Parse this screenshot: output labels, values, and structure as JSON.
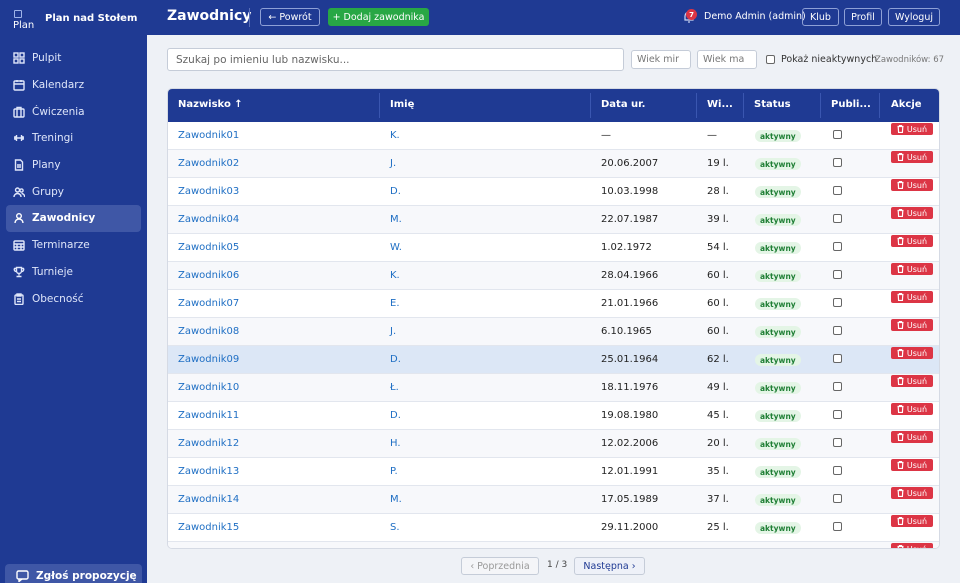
{
  "brand": {
    "logo_text": "Plan",
    "name": "Plan nad Stołem"
  },
  "sidebar": {
    "items": [
      {
        "label": "Pulpit",
        "icon": "grid-icon"
      },
      {
        "label": "Kalendarz",
        "icon": "calendar-icon"
      },
      {
        "label": "Ćwiczenia",
        "icon": "briefcase-icon"
      },
      {
        "label": "Treningi",
        "icon": "dumbbell-icon"
      },
      {
        "label": "Plany",
        "icon": "document-icon"
      },
      {
        "label": "Grupy",
        "icon": "group-icon"
      },
      {
        "label": "Zawodnicy",
        "icon": "user-icon",
        "active": true
      },
      {
        "label": "Terminarze",
        "icon": "calendar-grid-icon"
      },
      {
        "label": "Turnieje",
        "icon": "trophy-icon"
      },
      {
        "label": "Obecność",
        "icon": "clipboard-icon"
      }
    ],
    "propose": "Zgłoś propozycję"
  },
  "header": {
    "title": "Zawodnicy",
    "back": "← Powrót",
    "add": "+ Dodaj zawodnika",
    "notifications": "7",
    "user": "Demo Admin (admin)",
    "club": "Klub",
    "profile": "Profil",
    "logout": "Wyloguj"
  },
  "filters": {
    "search_placeholder": "Szukaj po imieniu lub nazwisku...",
    "age_min_placeholder": "Wiek mir",
    "age_max_placeholder": "Wiek ma",
    "show_inactive": "Pokaż nieaktywnych",
    "count": "Zawodników: 67"
  },
  "table": {
    "columns": [
      "Nazwisko ↑",
      "Imię",
      "Data ur.",
      "Wi...",
      "Status",
      "Publi...",
      "Akcje"
    ],
    "delete_label": "Usuń",
    "rows": [
      {
        "name": "Zawodnik01",
        "first": "K.",
        "date": "—",
        "age": "—",
        "status": "aktywny"
      },
      {
        "name": "Zawodnik02",
        "first": "J.",
        "date": "20.06.2007",
        "age": "19 l.",
        "status": "aktywny"
      },
      {
        "name": "Zawodnik03",
        "first": "D.",
        "date": "10.03.1998",
        "age": "28 l.",
        "status": "aktywny"
      },
      {
        "name": "Zawodnik04",
        "first": "M.",
        "date": "22.07.1987",
        "age": "39 l.",
        "status": "aktywny"
      },
      {
        "name": "Zawodnik05",
        "first": "W.",
        "date": "1.02.1972",
        "age": "54 l.",
        "status": "aktywny"
      },
      {
        "name": "Zawodnik06",
        "first": "K.",
        "date": "28.04.1966",
        "age": "60 l.",
        "status": "aktywny"
      },
      {
        "name": "Zawodnik07",
        "first": "E.",
        "date": "21.01.1966",
        "age": "60 l.",
        "status": "aktywny"
      },
      {
        "name": "Zawodnik08",
        "first": "J.",
        "date": "6.10.1965",
        "age": "60 l.",
        "status": "aktywny"
      },
      {
        "name": "Zawodnik09",
        "first": "D.",
        "date": "25.01.1964",
        "age": "62 l.",
        "status": "aktywny",
        "highlight": true
      },
      {
        "name": "Zawodnik10",
        "first": "Ł.",
        "date": "18.11.1976",
        "age": "49 l.",
        "status": "aktywny"
      },
      {
        "name": "Zawodnik11",
        "first": "D.",
        "date": "19.08.1980",
        "age": "45 l.",
        "status": "aktywny"
      },
      {
        "name": "Zawodnik12",
        "first": "H.",
        "date": "12.02.2006",
        "age": "20 l.",
        "status": "aktywny"
      },
      {
        "name": "Zawodnik13",
        "first": "P.",
        "date": "12.01.1991",
        "age": "35 l.",
        "status": "aktywny"
      },
      {
        "name": "Zawodnik14",
        "first": "M.",
        "date": "17.05.1989",
        "age": "37 l.",
        "status": "aktywny"
      },
      {
        "name": "Zawodnik15",
        "first": "S.",
        "date": "29.11.2000",
        "age": "25 l.",
        "status": "aktywny"
      }
    ]
  },
  "pagination": {
    "prev": "‹ Poprzednia",
    "info": "1 / 3",
    "next": "Następna ›"
  }
}
